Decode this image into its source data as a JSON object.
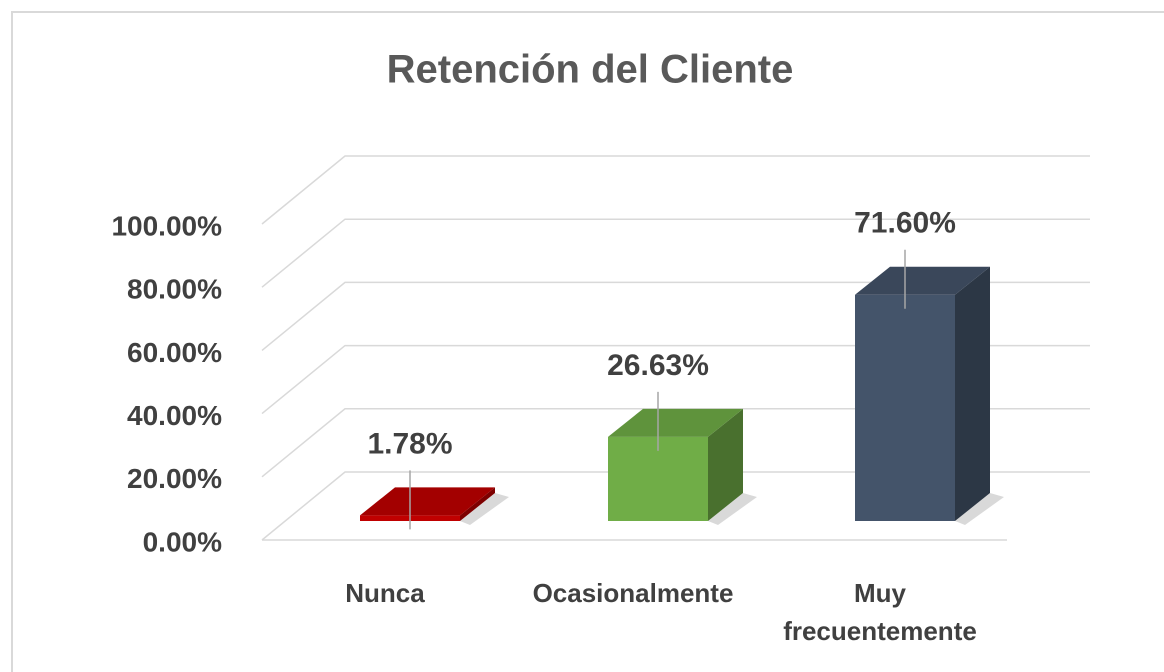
{
  "chart_data": {
    "type": "bar3d",
    "title": "Retención del Cliente",
    "categories": [
      "Nunca",
      "Ocasionalmente",
      "Muy frecuentemente"
    ],
    "values": [
      1.78,
      26.63,
      71.6
    ],
    "value_labels": [
      "1.78%",
      "26.63%",
      "71.60%"
    ],
    "colors": [
      "#c00000",
      "#70ad47",
      "#44546a"
    ],
    "ylim": [
      0,
      100
    ],
    "yticks": [
      {
        "value": 0,
        "label": "0.00%"
      },
      {
        "value": 20,
        "label": "20.00%"
      },
      {
        "value": 40,
        "label": "40.00%"
      },
      {
        "value": 60,
        "label": "60.00%"
      },
      {
        "value": 80,
        "label": "80.00%"
      },
      {
        "value": 100,
        "label": "100.00%"
      }
    ],
    "grid": true
  }
}
